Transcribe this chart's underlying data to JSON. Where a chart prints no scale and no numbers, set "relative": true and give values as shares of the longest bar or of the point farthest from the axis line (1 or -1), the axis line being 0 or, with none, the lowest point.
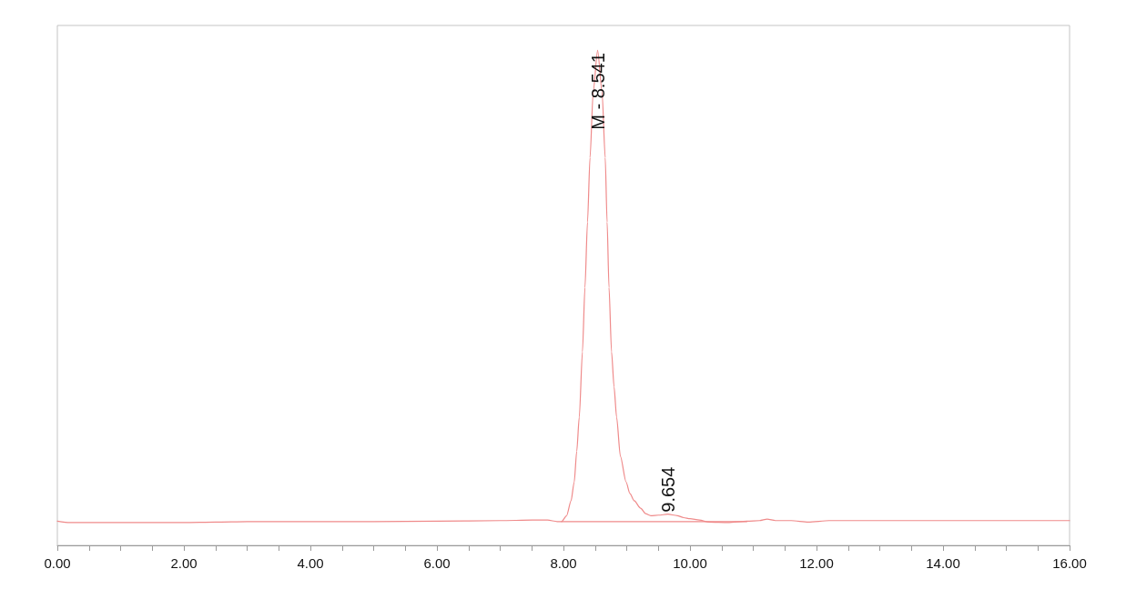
{
  "chart_data": {
    "type": "line",
    "relative": true,
    "xlim": [
      0,
      16
    ],
    "xticks": [
      {
        "value": 0,
        "label": "0.00"
      },
      {
        "value": 0.5,
        "label": null
      },
      {
        "value": 1,
        "label": null
      },
      {
        "value": 1.5,
        "label": null
      },
      {
        "value": 2,
        "label": "2.00"
      },
      {
        "value": 2.5,
        "label": null
      },
      {
        "value": 3,
        "label": null
      },
      {
        "value": 3.5,
        "label": null
      },
      {
        "value": 4,
        "label": "4.00"
      },
      {
        "value": 4.5,
        "label": null
      },
      {
        "value": 5,
        "label": null
      },
      {
        "value": 5.5,
        "label": null
      },
      {
        "value": 6,
        "label": "6.00"
      },
      {
        "value": 6.5,
        "label": null
      },
      {
        "value": 7,
        "label": null
      },
      {
        "value": 7.5,
        "label": null
      },
      {
        "value": 8,
        "label": "8.00"
      },
      {
        "value": 8.5,
        "label": null
      },
      {
        "value": 9,
        "label": null
      },
      {
        "value": 9.5,
        "label": null
      },
      {
        "value": 10,
        "label": "10.00"
      },
      {
        "value": 10.5,
        "label": null
      },
      {
        "value": 11,
        "label": null
      },
      {
        "value": 11.5,
        "label": null
      },
      {
        "value": 12,
        "label": "12.00"
      },
      {
        "value": 12.5,
        "label": null
      },
      {
        "value": 13,
        "label": null
      },
      {
        "value": 13.5,
        "label": null
      },
      {
        "value": 14,
        "label": "14.00"
      },
      {
        "value": 14.5,
        "label": null
      },
      {
        "value": 15,
        "label": null
      },
      {
        "value": 15.5,
        "label": null
      },
      {
        "value": 16,
        "label": "16.00"
      }
    ],
    "grid": false,
    "marker": "none",
    "line_style": "solid",
    "series": [
      {
        "color": "#ef8a8a",
        "x": [
          0,
          0.2,
          1,
          2,
          2.5,
          3,
          4,
          5,
          6,
          7,
          7.5,
          7.75,
          7.9,
          7.97,
          8.05,
          8.12,
          8.17,
          8.21,
          8.25,
          8.3,
          8.34,
          8.38,
          8.42,
          8.47,
          8.54,
          8.61,
          8.66,
          8.69,
          8.72,
          8.76,
          8.8,
          8.84,
          8.9,
          8.99,
          9.05,
          9.12,
          9.22,
          9.3,
          9.38,
          9.5,
          9.65,
          9.8,
          9.9,
          10,
          10.15,
          10.3,
          10.6,
          10.9,
          11.1,
          11.22,
          11.35,
          11.6,
          11.87,
          12.2,
          13,
          14,
          15,
          16
        ],
        "values": [
          0.049,
          0.046,
          0.046,
          0.046,
          0.047,
          0.048,
          0.048,
          0.048,
          0.049,
          0.05,
          0.051,
          0.051,
          0.048,
          0.048,
          0.06,
          0.09,
          0.128,
          0.19,
          0.259,
          0.391,
          0.521,
          0.653,
          0.783,
          0.916,
          1.0,
          0.916,
          0.783,
          0.653,
          0.521,
          0.391,
          0.32,
          0.259,
          0.18,
          0.128,
          0.105,
          0.09,
          0.075,
          0.064,
          0.06,
          0.061,
          0.063,
          0.06,
          0.056,
          0.054,
          0.051,
          0.047,
          0.046,
          0.049,
          0.05,
          0.053,
          0.05,
          0.05,
          0.047,
          0.05,
          0.05,
          0.05,
          0.05,
          0.05
        ]
      },
      {
        "color": "#ef8a8a",
        "x": [
          7.97,
          9.38,
          10.9
        ],
        "values": [
          0.048,
          0.048,
          0.048
        ]
      }
    ],
    "annotations": [
      {
        "text": "M - 8.541",
        "x": 8.541,
        "y": 1.0
      },
      {
        "text": "9.654",
        "x": 9.654,
        "y": 0.063
      }
    ]
  }
}
